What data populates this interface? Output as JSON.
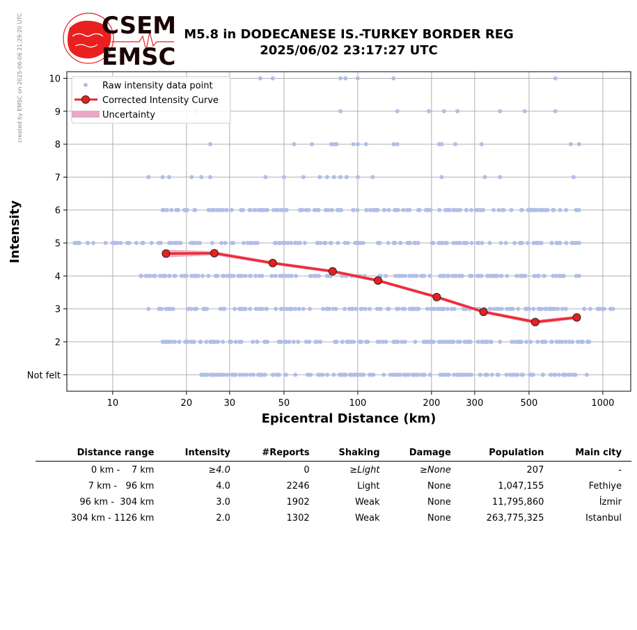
{
  "side_note": "created by EMSC on 2025-06-06 21:29:20 UTC",
  "logo": {
    "line1": "CSEM",
    "line2": "EMSC"
  },
  "colors": {
    "raw": "#b0bee8",
    "curve": "#f0242b",
    "marker": "#e8201f",
    "uncertainty": "#e8a8c8",
    "grid": "#b0b0b0"
  },
  "chart_data": {
    "type": "scatter",
    "title": [
      "M5.8 in DODECANESE IS.-TURKEY BORDER REG",
      "2025/06/02 23:17:27 UTC"
    ],
    "xlabel": "Epicentral Distance (km)",
    "ylabel": "Intensity",
    "x_scale": "log",
    "xlim": [
      6.5,
      1300
    ],
    "ylim": [
      0.5,
      10.2
    ],
    "x_ticks": [
      {
        "v": 10,
        "label": "10"
      },
      {
        "v": 20,
        "label": "20"
      },
      {
        "v": 30,
        "label": "30"
      },
      {
        "v": 50,
        "label": "50"
      },
      {
        "v": 100,
        "label": "100"
      },
      {
        "v": 200,
        "label": "200"
      },
      {
        "v": 300,
        "label": "300"
      },
      {
        "v": 500,
        "label": "500"
      },
      {
        "v": 1000,
        "label": "1000"
      }
    ],
    "y_ticks": [
      {
        "v": 1,
        "label": "Not felt"
      },
      {
        "v": 2,
        "label": "2"
      },
      {
        "v": 3,
        "label": "3"
      },
      {
        "v": 4,
        "label": "4"
      },
      {
        "v": 5,
        "label": "5"
      },
      {
        "v": 6,
        "label": "6"
      },
      {
        "v": 7,
        "label": "7"
      },
      {
        "v": 8,
        "label": "8"
      },
      {
        "v": 9,
        "label": "9"
      },
      {
        "v": 10,
        "label": "10"
      }
    ],
    "grid": true,
    "legend_position": "top-left",
    "legend": [
      "Raw intensity data point",
      "Corrected Intensity Curve",
      "Uncertainty"
    ],
    "raw_points": [
      {
        "intensity": 10,
        "range": [
          40,
          640
        ],
        "samples": [
          40,
          45,
          85,
          89,
          100,
          140,
          640
        ]
      },
      {
        "intensity": 9,
        "range": [
          22,
          640
        ],
        "samples": [
          22,
          85,
          145,
          195,
          225,
          255,
          380,
          480,
          640
        ]
      },
      {
        "intensity": 8,
        "range": [
          25,
          800
        ],
        "samples": [
          25,
          55,
          65,
          78,
          80,
          82,
          96,
          100,
          108,
          140,
          145,
          215,
          220,
          250,
          320,
          740,
          800
        ]
      },
      {
        "intensity": 7,
        "range": [
          14,
          760
        ],
        "samples": [
          14,
          16,
          17,
          21,
          23,
          25,
          42,
          50,
          60,
          70,
          75,
          80,
          85,
          90,
          100,
          115,
          220,
          330,
          380,
          760
        ]
      },
      {
        "intensity": 6,
        "range": [
          16,
          800
        ]
      },
      {
        "intensity": 5,
        "range": [
          7,
          800
        ]
      },
      {
        "intensity": 4,
        "range": [
          13,
          800
        ]
      },
      {
        "intensity": 3,
        "range": [
          14,
          1100
        ]
      },
      {
        "intensity": 2,
        "range": [
          16,
          880
        ]
      },
      {
        "intensity": 1,
        "range": [
          23,
          860
        ]
      }
    ],
    "series": [
      {
        "name": "Corrected Intensity Curve",
        "x": [
          16.5,
          26,
          45,
          79,
          121,
          210,
          326,
          530,
          783
        ],
        "y": [
          4.68,
          4.69,
          4.39,
          4.14,
          3.86,
          3.36,
          2.91,
          2.6,
          2.74
        ],
        "uncertainty": [
          0.12,
          0.06,
          0.05,
          0.05,
          0.05,
          0.05,
          0.05,
          0.06,
          0.05
        ]
      }
    ]
  },
  "table": {
    "headers": [
      "Distance range",
      "Intensity",
      "#Reports",
      "Shaking",
      "Damage",
      "Population",
      "Main city"
    ],
    "rows": [
      {
        "range": "0 km -    7 km",
        "intensity": "≥4.0",
        "reports": "0",
        "shaking": "≥Light",
        "damage": "≥None",
        "population": "207",
        "city": "-",
        "italic": true
      },
      {
        "range": "7 km -   96 km",
        "intensity": "4.0",
        "reports": "2246",
        "shaking": "Light",
        "damage": "None",
        "population": "1,047,155",
        "city": "Fethiye",
        "italic": false
      },
      {
        "range": "96 km -  304 km",
        "intensity": "3.0",
        "reports": "1902",
        "shaking": "Weak",
        "damage": "None",
        "population": "11,795,860",
        "city": "İzmir",
        "italic": false
      },
      {
        "range": "304 km - 1126 km",
        "intensity": "2.0",
        "reports": "1302",
        "shaking": "Weak",
        "damage": "None",
        "population": "263,775,325",
        "city": "Istanbul",
        "italic": false
      }
    ]
  }
}
